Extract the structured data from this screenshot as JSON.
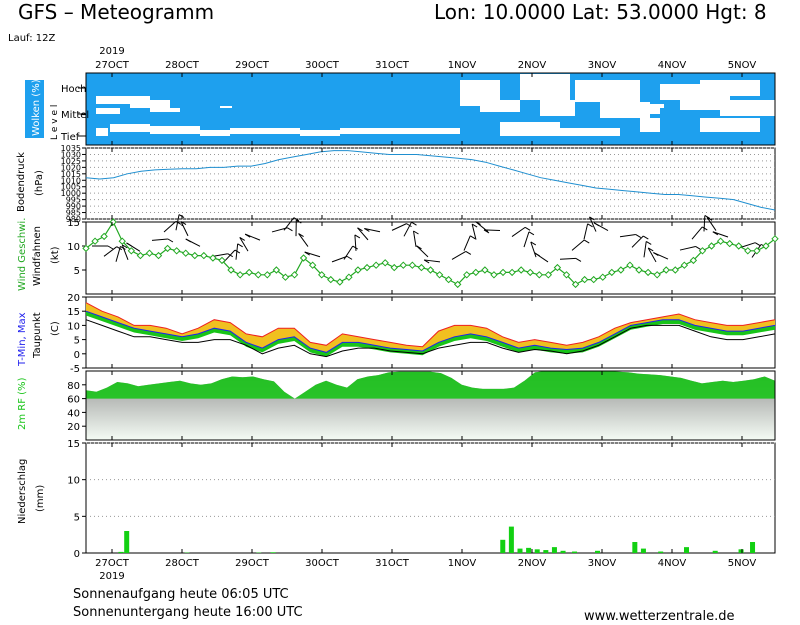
{
  "header": {
    "model_title": "GFS  –  Meteogramm",
    "location": "Lon: 10.0000  Lat: 53.0000  Hgt: 8",
    "run": "Lauf: 12Z"
  },
  "footer": {
    "sunrise": "Sonnenaufgang heute 06:05 UTC",
    "sunset": "Sonnenuntergang heute 16:00 UTC",
    "site": "www.wetterzentrale.de"
  },
  "colors": {
    "cloud_blue": "#1ea0ee",
    "pressure_line": "#1f8fd0",
    "wind_green": "#22a822",
    "tmax_red": "#ee2020",
    "tmin_blue": "#2020ee",
    "dewpoint_black": "#000000",
    "humidity_green": "#18c418",
    "precip_green": "#12d012"
  },
  "chart_data": {
    "type": "line",
    "year": "2019",
    "time_axis": {
      "labels": [
        "27OCT",
        "28OCT",
        "29OCT",
        "30OCT",
        "31OCT",
        "1NOV",
        "2NOV",
        "3NOV",
        "4NOV",
        "5NOV"
      ],
      "start_hour": 0,
      "end_hour": 240,
      "step_hours": 6
    },
    "panels": [
      {
        "id": "clouds",
        "labels": [
          "Wolken (%)",
          "L e v e l"
        ],
        "levels": [
          "Hoch",
          "Mittel",
          "Tief"
        ]
      },
      {
        "id": "pressure",
        "labels": [
          "Bodendruck",
          "(hPa)"
        ],
        "ylim": [
          980,
          1035
        ],
        "yticks": [
          980,
          985,
          990,
          995,
          1000,
          1005,
          1010,
          1015,
          1020,
          1025,
          1030,
          1035
        ],
        "values": [
          1012,
          1011,
          1012,
          1015,
          1017,
          1018,
          1018.5,
          1019,
          1019,
          1020,
          1020,
          1021,
          1021,
          1023,
          1026,
          1028,
          1030,
          1032,
          1033,
          1033,
          1032,
          1031,
          1030,
          1030,
          1030,
          1029,
          1028,
          1027,
          1026,
          1024,
          1021,
          1018,
          1015,
          1012,
          1010,
          1008,
          1006,
          1004,
          1003,
          1002,
          1001,
          1000,
          999,
          999,
          998,
          997,
          996,
          995,
          992,
          989,
          987
        ]
      },
      {
        "id": "wind",
        "labels": [
          "Wind Geschwi.",
          "Windfahnen",
          "(kt)"
        ],
        "ylim": [
          0,
          15
        ],
        "yticks": [
          5,
          10,
          15
        ],
        "values": [
          9.5,
          11,
          12,
          15,
          11,
          9,
          8,
          8.5,
          8,
          9.5,
          9,
          8.5,
          8,
          8,
          7.5,
          7,
          5,
          4,
          4.5,
          4,
          4,
          5,
          3.5,
          4,
          7.5,
          6,
          4,
          3,
          2.5,
          3.5,
          5,
          5.5,
          6,
          6.5,
          5.5,
          6,
          6,
          5.5,
          5,
          4,
          3,
          2,
          4,
          4.5,
          5,
          4,
          4.5,
          4.5,
          5,
          4.5,
          4,
          4,
          5.5,
          4,
          2,
          3,
          3,
          3.5,
          4.5,
          5,
          6,
          5,
          4.5,
          4,
          5,
          5,
          6,
          7,
          9,
          10,
          11,
          10.5,
          10,
          9,
          9,
          10,
          11.5
        ]
      },
      {
        "id": "temperature",
        "labels": [
          "T-Min, Max",
          "Taupunkt",
          "(C)"
        ],
        "ylim": [
          -5,
          20
        ],
        "yticks": [
          -5,
          0,
          5,
          10,
          15,
          20
        ],
        "tmax": [
          18,
          15,
          13,
          10,
          10,
          9,
          7,
          9,
          12,
          11,
          7,
          6,
          9,
          9,
          4,
          3,
          7,
          6,
          5,
          4,
          3,
          2.5,
          8,
          10,
          10,
          9,
          6,
          4,
          5,
          4,
          3,
          4,
          6,
          9,
          11,
          12,
          13,
          14,
          12,
          11,
          10,
          10,
          11,
          12
        ],
        "tmin": [
          15,
          13,
          11,
          9,
          8,
          7,
          6,
          7,
          9,
          8,
          4,
          2,
          5,
          6,
          2,
          0.5,
          4,
          4,
          3,
          2,
          1.5,
          1,
          4,
          6,
          7,
          6,
          4,
          2,
          3,
          2,
          1.5,
          2,
          4,
          7,
          10,
          11,
          12,
          12,
          10,
          9,
          8,
          8,
          9,
          10
        ],
        "dewpoint": [
          12,
          10,
          8,
          6,
          6,
          5,
          4,
          4,
          5,
          5,
          3,
          0,
          2,
          3,
          0,
          -1,
          1,
          2,
          2,
          1,
          0.5,
          0,
          2,
          3,
          4,
          4,
          2,
          0.5,
          1.5,
          1,
          0,
          1,
          3,
          6,
          9,
          10,
          10,
          10,
          8,
          6,
          5,
          5,
          6,
          7
        ]
      },
      {
        "id": "humidity",
        "labels": [
          "2m RF (%)"
        ],
        "ylim": [
          0,
          100
        ],
        "yticks": [
          20,
          40,
          60,
          80
        ],
        "values": [
          72,
          70,
          76,
          84,
          82,
          78,
          80,
          82,
          84,
          86,
          82,
          80,
          82,
          88,
          92,
          91,
          92,
          88,
          85,
          70,
          60,
          70,
          80,
          86,
          80,
          76,
          88,
          92,
          94,
          98,
          99,
          99,
          99,
          99,
          97,
          90,
          80,
          76,
          74,
          74,
          74,
          76,
          86,
          98,
          100,
          100,
          100,
          100,
          100,
          100,
          100,
          99,
          98,
          96,
          95,
          94,
          92,
          90,
          86,
          82,
          84,
          86,
          84,
          86,
          88,
          92,
          86
        ]
      },
      {
        "id": "precip",
        "labels": [
          "Niederschlag",
          "(mm)"
        ],
        "ylim": [
          0,
          15
        ],
        "yticks": [
          0,
          5,
          10,
          15
        ],
        "bars": [
          [
            12,
            0.15
          ],
          [
            14,
            3
          ],
          [
            35,
            0.05
          ],
          [
            60,
            0.05
          ],
          [
            65,
            0.1
          ],
          [
            145,
            1.8
          ],
          [
            148,
            3.6
          ],
          [
            151,
            0.6
          ],
          [
            154,
            0.7
          ],
          [
            157,
            0.5
          ],
          [
            160,
            0.4
          ],
          [
            163,
            0.8
          ],
          [
            166,
            0.3
          ],
          [
            170,
            0.2
          ],
          [
            178,
            0.3
          ],
          [
            191,
            1.5
          ],
          [
            194,
            0.6
          ],
          [
            200,
            0.2
          ],
          [
            209,
            0.8
          ],
          [
            219,
            0.3
          ],
          [
            228,
            0.5
          ],
          [
            232,
            1.5
          ]
        ]
      }
    ]
  }
}
